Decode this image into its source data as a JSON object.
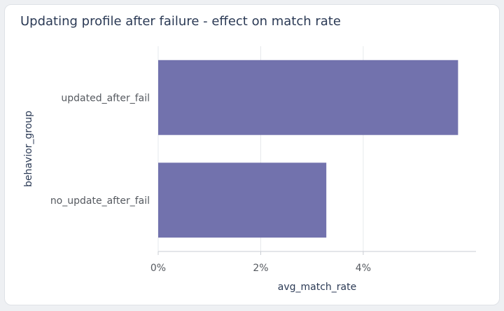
{
  "title": "Updating profile after failure - effect on match rate",
  "chart_data": {
    "type": "bar",
    "orientation": "horizontal",
    "title": "Updating profile after failure - effect on match rate",
    "xlabel": "avg_match_rate",
    "ylabel": "behavior_group",
    "categories": [
      "updated_after_fail",
      "no_update_after_fail"
    ],
    "values": [
      0.0585,
      0.0328
    ],
    "xlim": [
      0,
      0.062
    ],
    "xticks": [
      0,
      0.02,
      0.04
    ],
    "xtick_labels": [
      "0%",
      "2%",
      "4%"
    ],
    "grid": true,
    "legend": "none",
    "colors": {
      "bar": "#7272ad",
      "grid": "#e6e8ec",
      "axis": "#c9cdd3"
    }
  }
}
